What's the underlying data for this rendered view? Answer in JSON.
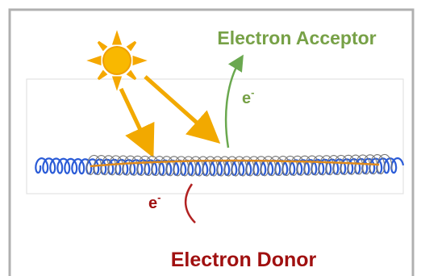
{
  "acceptor": {
    "label": "Electron Acceptor",
    "electron": {
      "base": "e",
      "sup": "-"
    }
  },
  "donor": {
    "label": "Electron Donor",
    "electron": {
      "base": "e",
      "sup": "-"
    }
  }
}
